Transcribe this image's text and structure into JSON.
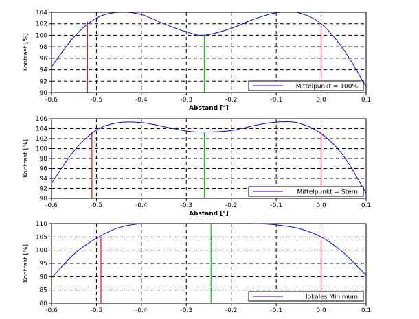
{
  "colors": {
    "curve": "#0000ff",
    "marker_red": "#ff0000",
    "marker_green": "#00cc00",
    "axis": "#000000",
    "grid": "#000000"
  },
  "chart_data": [
    {
      "type": "line",
      "ylabel": "Kontrast [%]",
      "xlabel": "Abstand [°]",
      "xlim": [
        -0.6,
        0.1
      ],
      "ylim": [
        90,
        104
      ],
      "x_ticks": [
        "-0.6",
        "-0.5",
        "-0.4",
        "-0.3",
        "-0.2",
        "-0.1",
        "0.0",
        "0.1"
      ],
      "y_ticks": [
        "90",
        "92",
        "94",
        "96",
        "98",
        "100",
        "102",
        "104"
      ],
      "grid": true,
      "legend": {
        "placement": "bottom-right",
        "label": "Mittelpunkt = 100%"
      },
      "series": [
        {
          "name": "Mittelpunkt = 100%",
          "color": "#0000ff",
          "x": [
            -0.6,
            -0.55,
            -0.5,
            -0.45,
            -0.4,
            -0.35,
            -0.3,
            -0.26,
            -0.2,
            -0.15,
            -0.1,
            -0.05,
            0.0,
            0.05,
            0.1
          ],
          "y": [
            94.5,
            99.7,
            103.0,
            104.0,
            103.6,
            102.0,
            100.6,
            100.0,
            101.2,
            102.8,
            103.9,
            103.9,
            102.0,
            97.5,
            91.0
          ]
        }
      ],
      "markers": [
        {
          "x": -0.52,
          "y": 102.4,
          "color": "#ff0000"
        },
        {
          "x": -0.26,
          "y": 100.0,
          "color": "#00cc00"
        },
        {
          "x": 0.0,
          "y": 102.1,
          "color": "#ff0000"
        }
      ]
    },
    {
      "type": "line",
      "ylabel": "Kontrast [%]",
      "xlabel": "Abstand [°]",
      "xlim": [
        -0.6,
        0.1
      ],
      "ylim": [
        90,
        106
      ],
      "x_ticks": [
        "-0.6",
        "-0.5",
        "-0.4",
        "-0.3",
        "-0.2",
        "-0.1",
        "0.0",
        "0.1"
      ],
      "y_ticks": [
        "90",
        "92",
        "94",
        "96",
        "98",
        "100",
        "102",
        "104",
        "106"
      ],
      "grid": true,
      "legend": {
        "placement": "bottom-right",
        "label": "Mittelpunkt = Stern"
      },
      "series": [
        {
          "name": "Mittelpunkt = Stern",
          "color": "#0000ff",
          "x": [
            -0.6,
            -0.55,
            -0.5,
            -0.45,
            -0.4,
            -0.35,
            -0.3,
            -0.26,
            -0.2,
            -0.15,
            -0.1,
            -0.05,
            0.0,
            0.05,
            0.1
          ],
          "y": [
            93.0,
            99.5,
            103.7,
            105.2,
            105.2,
            104.4,
            103.5,
            103.3,
            103.6,
            104.6,
            105.3,
            105.1,
            103.0,
            98.5,
            91.0
          ]
        }
      ],
      "markers": [
        {
          "x": -0.51,
          "y": 103.4,
          "color": "#ff0000"
        },
        {
          "x": -0.26,
          "y": 103.3,
          "color": "#00cc00"
        },
        {
          "x": 0.0,
          "y": 103.0,
          "color": "#ff0000"
        }
      ]
    },
    {
      "type": "line",
      "ylabel": "Kontrast [%]",
      "xlabel": "",
      "xlim": [
        -0.6,
        0.1
      ],
      "ylim": [
        80,
        110
      ],
      "x_ticks": [
        "-0.6",
        "-0.5",
        "-0.4",
        "-0.3",
        "-0.2",
        "-0.1",
        "0.0",
        "0.1"
      ],
      "y_ticks": [
        "80",
        "85",
        "90",
        "95",
        "100",
        "105",
        "110"
      ],
      "grid": true,
      "legend": {
        "placement": "bottom-right",
        "label": "lokales Minimum"
      },
      "series": [
        {
          "name": "lokales Minimum",
          "color": "#0000ff",
          "x": [
            -0.6,
            -0.55,
            -0.5,
            -0.45,
            -0.4,
            -0.35,
            -0.3,
            -0.25,
            -0.2,
            -0.15,
            -0.1,
            -0.05,
            0.0,
            0.05,
            0.1
          ],
          "y": [
            89.5,
            98.5,
            104.5,
            108.5,
            110.0,
            110.0,
            110.0,
            110.0,
            110.0,
            110.0,
            109.5,
            108.2,
            105.0,
            99.0,
            90.5
          ]
        }
      ],
      "markers": [
        {
          "x": -0.49,
          "y": 105.0,
          "color": "#ff0000"
        },
        {
          "x": -0.245,
          "y": 110.0,
          "color": "#00cc00"
        },
        {
          "x": 0.0,
          "y": 105.0,
          "color": "#ff0000"
        }
      ]
    }
  ]
}
